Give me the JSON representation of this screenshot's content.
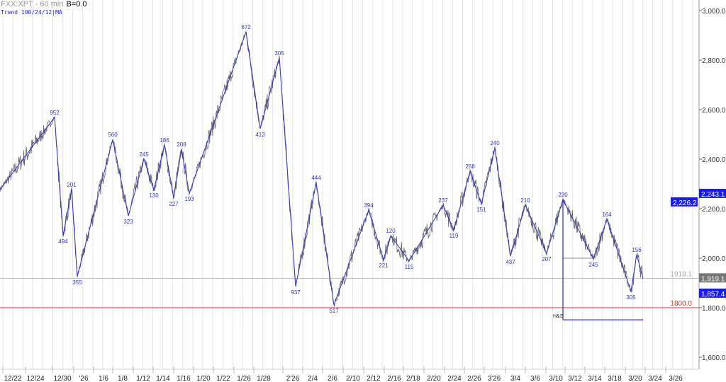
{
  "header": {
    "symbol": "FXX:XPT - 60 min",
    "b_value": "B=0.0",
    "study": "Trend 100/24/12|MA"
  },
  "colors": {
    "zigzag": "#3333cc",
    "price": "#666666",
    "support": "#e03030",
    "badge": "#1a1aff",
    "last": "#777777"
  },
  "chart_data": {
    "type": "line",
    "title": "FXX:XPT - 60 min",
    "ylim": [
      1600,
      3000
    ],
    "xlim": [
      0,
      985
    ],
    "y_ticks": [
      "3,000.0",
      "2,800.0",
      "2,600.0",
      "2,400.0",
      "2,200.0",
      "2,000.0",
      "1,800.0",
      "1,600.0"
    ],
    "y_tick_values": [
      3000,
      2800,
      2600,
      2400,
      2200,
      2000,
      1800,
      1600
    ],
    "x_ticks": [
      {
        "label": "12/22",
        "x": 18
      },
      {
        "label": "12/24",
        "x": 50
      },
      {
        "label": "12/30",
        "x": 88
      },
      {
        "label": "'26",
        "x": 118
      },
      {
        "label": "1/6",
        "x": 146
      },
      {
        "label": "1/8",
        "x": 173
      },
      {
        "label": "1/12",
        "x": 202
      },
      {
        "label": "1/14",
        "x": 230
      },
      {
        "label": "1/16",
        "x": 259
      },
      {
        "label": "1/20",
        "x": 287
      },
      {
        "label": "1/22",
        "x": 315
      },
      {
        "label": "1/26",
        "x": 344
      },
      {
        "label": "1/28",
        "x": 372
      },
      {
        "label": "2'26",
        "x": 413
      },
      {
        "label": "2/4",
        "x": 441
      },
      {
        "label": "2/6",
        "x": 469
      },
      {
        "label": "2/10",
        "x": 498
      },
      {
        "label": "2/12",
        "x": 527
      },
      {
        "label": "2/16",
        "x": 556
      },
      {
        "label": "2/18",
        "x": 583
      },
      {
        "label": "2/20",
        "x": 612
      },
      {
        "label": "2/24",
        "x": 641
      },
      {
        "label": "2/26",
        "x": 669
      },
      {
        "label": "3'26",
        "x": 697
      },
      {
        "label": "3/4",
        "x": 727
      },
      {
        "label": "3/6",
        "x": 755
      },
      {
        "label": "3/10",
        "x": 784
      },
      {
        "label": "3/12",
        "x": 811
      },
      {
        "label": "3/14",
        "x": 839
      },
      {
        "label": "3/18",
        "x": 867
      },
      {
        "label": "3/20",
        "x": 896
      },
      {
        "label": "3/24",
        "x": 924
      },
      {
        "label": "3/26",
        "x": 953
      }
    ],
    "zigzag": [
      {
        "x": 0,
        "y": 2277,
        "label": ""
      },
      {
        "x": 77,
        "y": 2569,
        "label": "952"
      },
      {
        "x": 89,
        "y": 2091,
        "label": "494"
      },
      {
        "x": 101,
        "y": 2277,
        "label": "201"
      },
      {
        "x": 109,
        "y": 1926,
        "label": "355"
      },
      {
        "x": 159,
        "y": 2480,
        "label": "560"
      },
      {
        "x": 181,
        "y": 2171,
        "label": "323"
      },
      {
        "x": 203,
        "y": 2400,
        "label": "245"
      },
      {
        "x": 217,
        "y": 2277,
        "label": "130"
      },
      {
        "x": 232,
        "y": 2457,
        "label": "186"
      },
      {
        "x": 245,
        "y": 2243,
        "label": "227"
      },
      {
        "x": 256,
        "y": 2440,
        "label": "208"
      },
      {
        "x": 267,
        "y": 2263,
        "label": "193"
      },
      {
        "x": 347,
        "y": 2914,
        "label": "672"
      },
      {
        "x": 367,
        "y": 2523,
        "label": "413"
      },
      {
        "x": 394,
        "y": 2809,
        "label": "305"
      },
      {
        "x": 417,
        "y": 1886,
        "label": "937"
      },
      {
        "x": 446,
        "y": 2306,
        "label": "444"
      },
      {
        "x": 471,
        "y": 1811,
        "label": "517"
      },
      {
        "x": 520,
        "y": 2194,
        "label": "394"
      },
      {
        "x": 541,
        "y": 1994,
        "label": "221"
      },
      {
        "x": 551,
        "y": 2091,
        "label": "120"
      },
      {
        "x": 577,
        "y": 1989,
        "label": "115"
      },
      {
        "x": 625,
        "y": 2214,
        "label": "237"
      },
      {
        "x": 640,
        "y": 2114,
        "label": "119"
      },
      {
        "x": 663,
        "y": 2351,
        "label": "258"
      },
      {
        "x": 679,
        "y": 2220,
        "label": "151"
      },
      {
        "x": 698,
        "y": 2446,
        "label": "240"
      },
      {
        "x": 720,
        "y": 2009,
        "label": "437"
      },
      {
        "x": 741,
        "y": 2214,
        "label": "210"
      },
      {
        "x": 771,
        "y": 2020,
        "label": "207"
      },
      {
        "x": 794,
        "y": 2237,
        "label": "230"
      },
      {
        "x": 837,
        "y": 1997,
        "label": "245"
      },
      {
        "x": 856,
        "y": 2157,
        "label": "164"
      },
      {
        "x": 890,
        "y": 1866,
        "label": "305"
      },
      {
        "x": 898,
        "y": 2014,
        "label": "156"
      },
      {
        "x": 907,
        "y": 1919,
        "label": ""
      }
    ],
    "lines": {
      "last_price": {
        "value": 1919.1,
        "label": "1919.1",
        "badge": "1,919.1"
      },
      "support": {
        "value": 1800.0,
        "label": "1800.0"
      },
      "badges": [
        {
          "value": 2243.1,
          "label": "2,243.1"
        },
        {
          "value": 2226.2,
          "label": "2,226.2"
        },
        {
          "value": 1857.4,
          "label": "1,857.4"
        }
      ],
      "hs": {
        "label": "H&S",
        "neckline": 2000,
        "start_x": 794,
        "neck_end_x": 837,
        "target": 1751,
        "end_x": 907,
        "top": 2237
      }
    }
  }
}
